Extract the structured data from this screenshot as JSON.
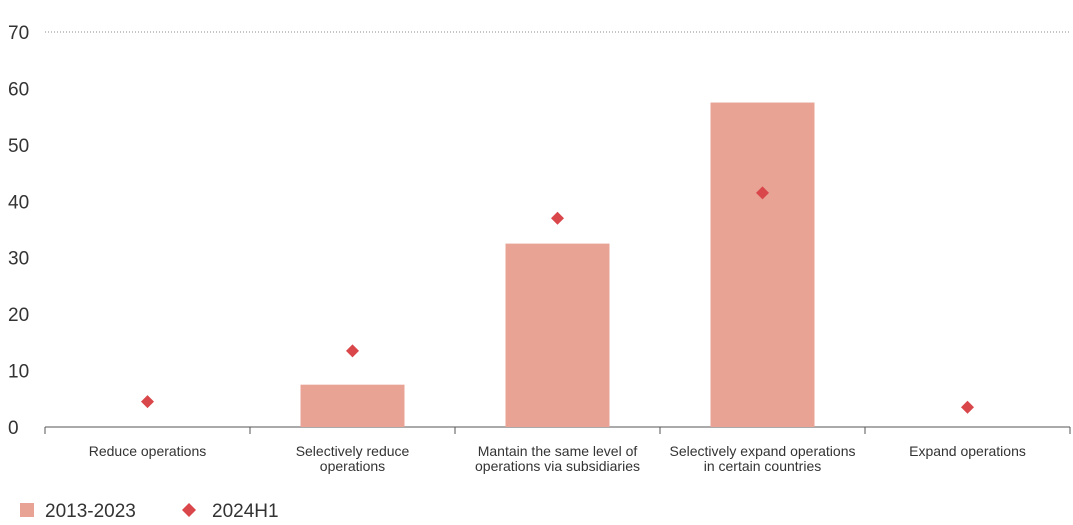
{
  "chart_data": {
    "type": "bar",
    "categories": [
      [
        "Reduce operations"
      ],
      [
        "Selectively reduce",
        "operations"
      ],
      [
        "Mantain the same level of",
        "operations via subsidiaries"
      ],
      [
        "Selectively expand operations",
        "in certain countries"
      ],
      [
        "Expand operations"
      ]
    ],
    "series": [
      {
        "name": "2013-2023",
        "kind": "bar",
        "color": "#e8a395",
        "values": [
          0,
          7.5,
          32.5,
          57.5,
          0
        ]
      },
      {
        "name": "2024H1",
        "kind": "marker",
        "marker": "diamond",
        "color": "#d9474a",
        "values": [
          4.5,
          13.5,
          37,
          41.5,
          3.5
        ]
      }
    ],
    "yticks": [
      0,
      10,
      20,
      30,
      40,
      50,
      60,
      70
    ],
    "ylim": [
      0,
      70
    ],
    "grid": "top dotted line only",
    "legend": "bottom-left"
  }
}
